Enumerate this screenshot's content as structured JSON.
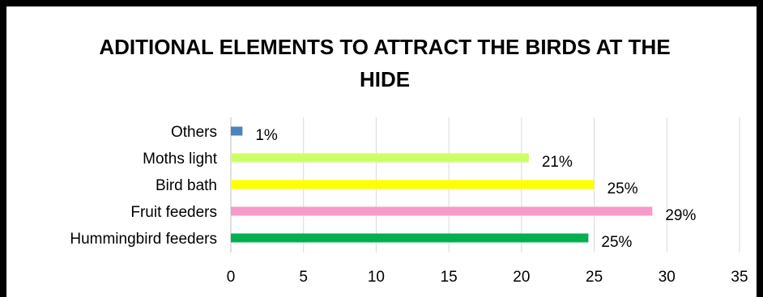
{
  "chart_data": {
    "type": "bar",
    "orientation": "horizontal",
    "title_line1": "ADITIONAL ELEMENTS TO ATTRACT THE BIRDS AT THE",
    "title_line2": "HIDE",
    "categories": [
      "Hummingbird feeders",
      "Fruit feeders",
      "Bird bath",
      "Moths light",
      "Others"
    ],
    "values": [
      24.6,
      29,
      25,
      20.5,
      0.8
    ],
    "data_labels": [
      "25%",
      "29%",
      "25%",
      "21%",
      "1%"
    ],
    "colors": [
      "#00b050",
      "#f79ac8",
      "#ffff00",
      "#ccff66",
      "#4f81bd"
    ],
    "xlim": [
      0,
      35
    ],
    "xticks": [
      0,
      5,
      10,
      15,
      20,
      25,
      30,
      35
    ],
    "xtick_labels": [
      "0",
      "5",
      "10",
      "15",
      "20",
      "25",
      "30",
      "35"
    ],
    "grid": "vertical",
    "legend": "none"
  }
}
